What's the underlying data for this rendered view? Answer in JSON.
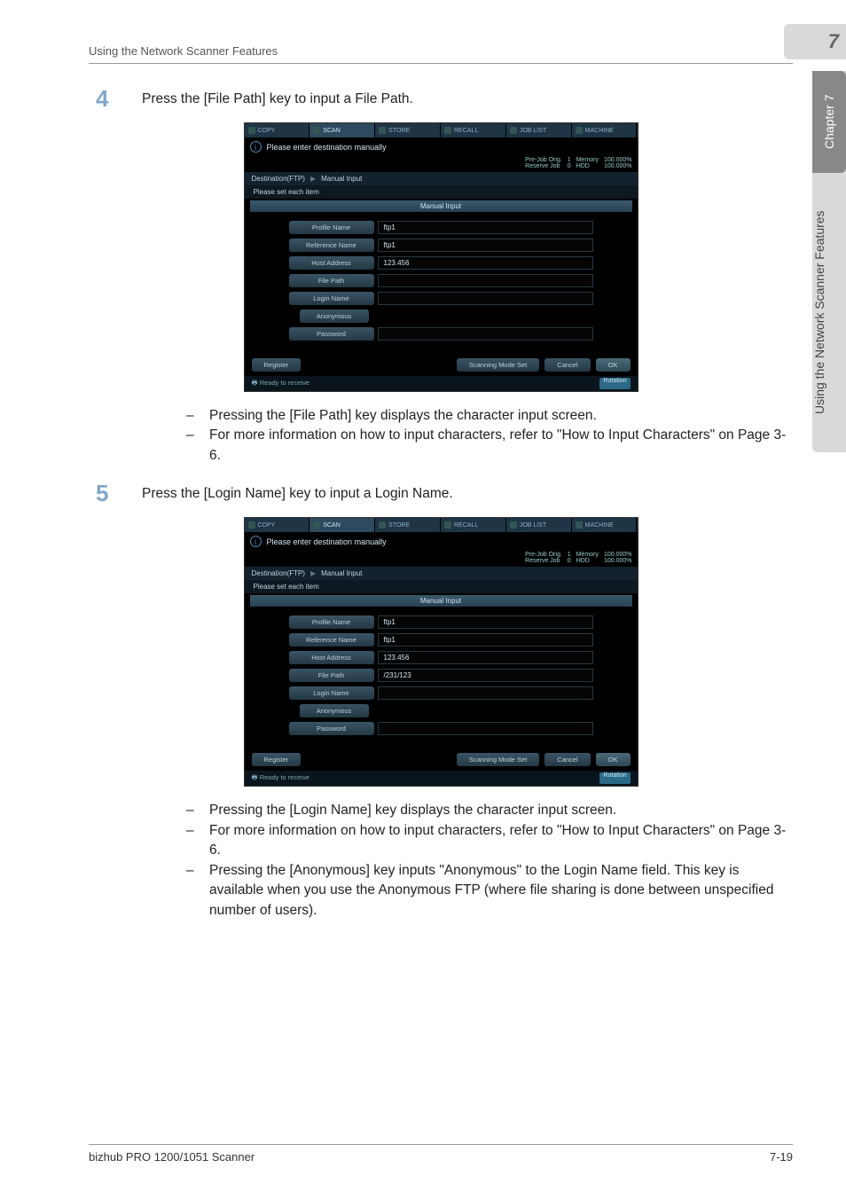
{
  "header": {
    "title": "Using the Network Scanner Features",
    "section_number": "7"
  },
  "side": {
    "chapter": "Chapter 7",
    "label": "Using the Network Scanner Features"
  },
  "steps": [
    {
      "num": "4",
      "text": "Press the [File Path] key to input a File Path."
    },
    {
      "num": "5",
      "text": "Press the [Login Name] key to input a Login Name."
    }
  ],
  "screenshot_common": {
    "tabs": [
      "COPY",
      "SCAN",
      "STORE",
      "RECALL",
      "JOB LIST",
      "MACHINE"
    ],
    "info_msg": "Please enter destination manually",
    "status": {
      "r1c1": "Pre-Job Orig.",
      "r1c2": "1",
      "r1c3": "Memory",
      "r1c4": "100.000%",
      "r2c1": "Reserve Job",
      "r2c2": "0",
      "r2c3": "HDD",
      "r2c4": "100.000%"
    },
    "breadcrumb": [
      "Destination(FTP)",
      "Manual Input"
    ],
    "sub": "Please set each item",
    "bar": "Manual Input",
    "labels": {
      "profile": "Profile Name",
      "reference": "Reference Name",
      "host": "Host Address",
      "filepath": "File Path",
      "login": "Login Name",
      "anonymous": "Anonymous",
      "password": "Password"
    },
    "buttons": {
      "register": "Register",
      "scan_mode": "Scanning Mode Set",
      "cancel": "Cancel",
      "ok": "OK"
    },
    "ready": "Ready to receive",
    "rotation": "Rotation"
  },
  "screenshot1_values": {
    "profile": "ftp1",
    "reference": "ftp1",
    "host": "123.456",
    "filepath": "",
    "login": "",
    "password": ""
  },
  "screenshot2_values": {
    "profile": "ftp1",
    "reference": "ftp1",
    "host": "123.456",
    "filepath": "/231/123",
    "login": "",
    "password": ""
  },
  "bullets1": [
    "Pressing the [File Path] key displays the character input screen.",
    "For more information on how to input characters, refer to \"How to Input Characters\" on Page 3-6."
  ],
  "bullets2": [
    "Pressing the [Login Name] key displays the character input screen.",
    "For more information on how to input characters, refer to \"How to Input Characters\" on Page 3-6.",
    "Pressing the [Anonymous] key inputs \"Anonymous\" to the Login Name field. This key is available when you use the Anonymous FTP (where file sharing is done between unspecified number of users)."
  ],
  "footer": {
    "left": "bizhub PRO 1200/1051 Scanner",
    "right": "7-19"
  }
}
